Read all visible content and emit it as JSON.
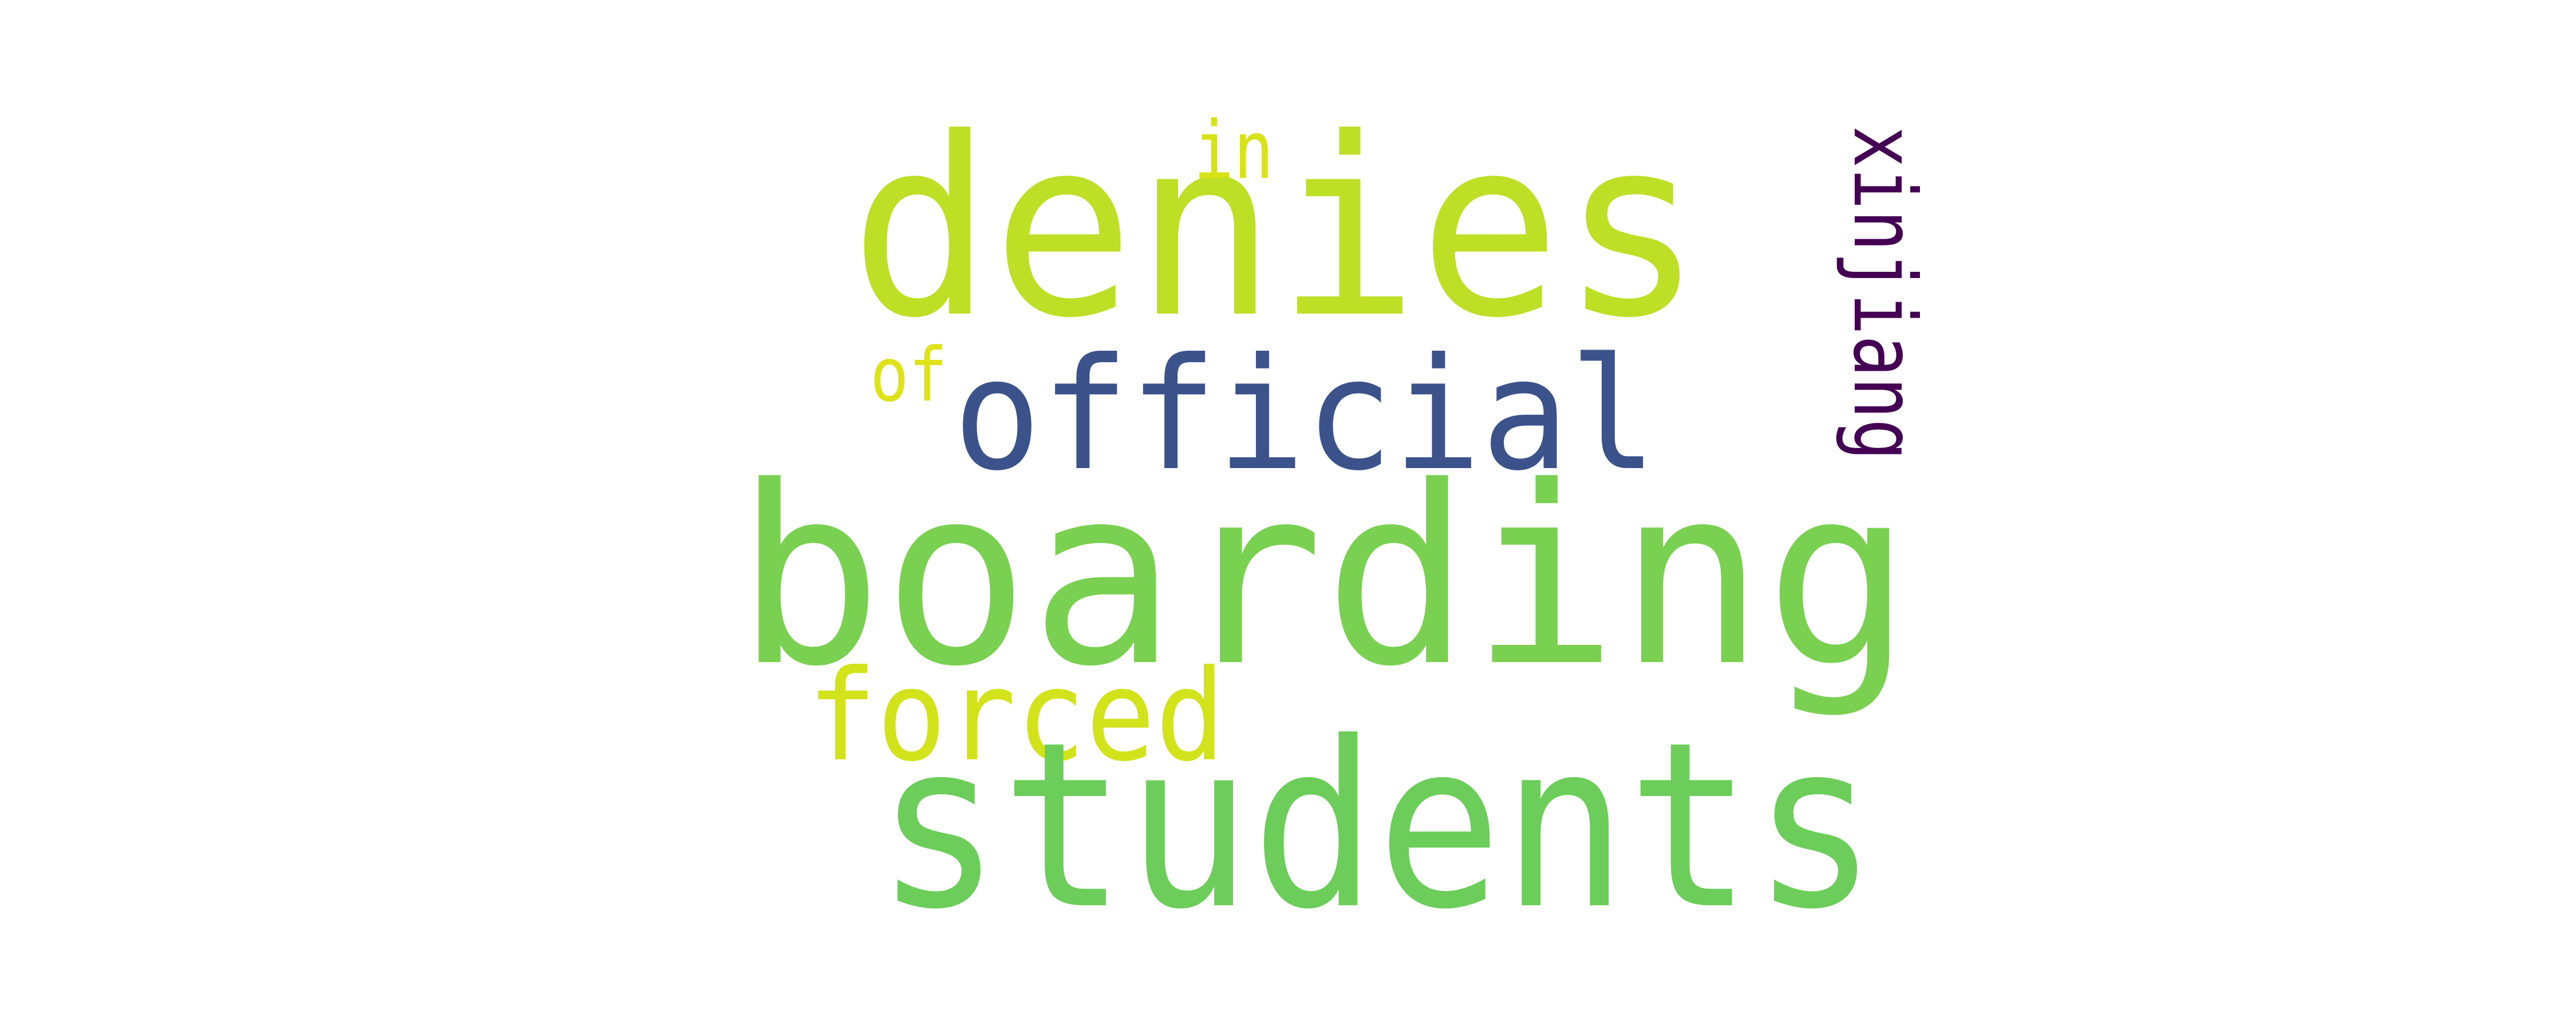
{
  "words": [
    {
      "key": "boarding",
      "text": "boarding",
      "color": "#7ad151"
    },
    {
      "key": "denies",
      "text": "denies",
      "color": "#bddf26"
    },
    {
      "key": "students",
      "text": "students",
      "color": "#6ccd5a"
    },
    {
      "key": "official",
      "text": "official",
      "color": "#3b528b"
    },
    {
      "key": "xinjiang",
      "text": "xinjiang",
      "color": "#440154"
    },
    {
      "key": "forced",
      "text": "forced",
      "color": "#d2e21b"
    },
    {
      "key": "in",
      "text": "in",
      "color": "#d8e219"
    },
    {
      "key": "of",
      "text": "of",
      "color": "#dde318"
    }
  ]
}
